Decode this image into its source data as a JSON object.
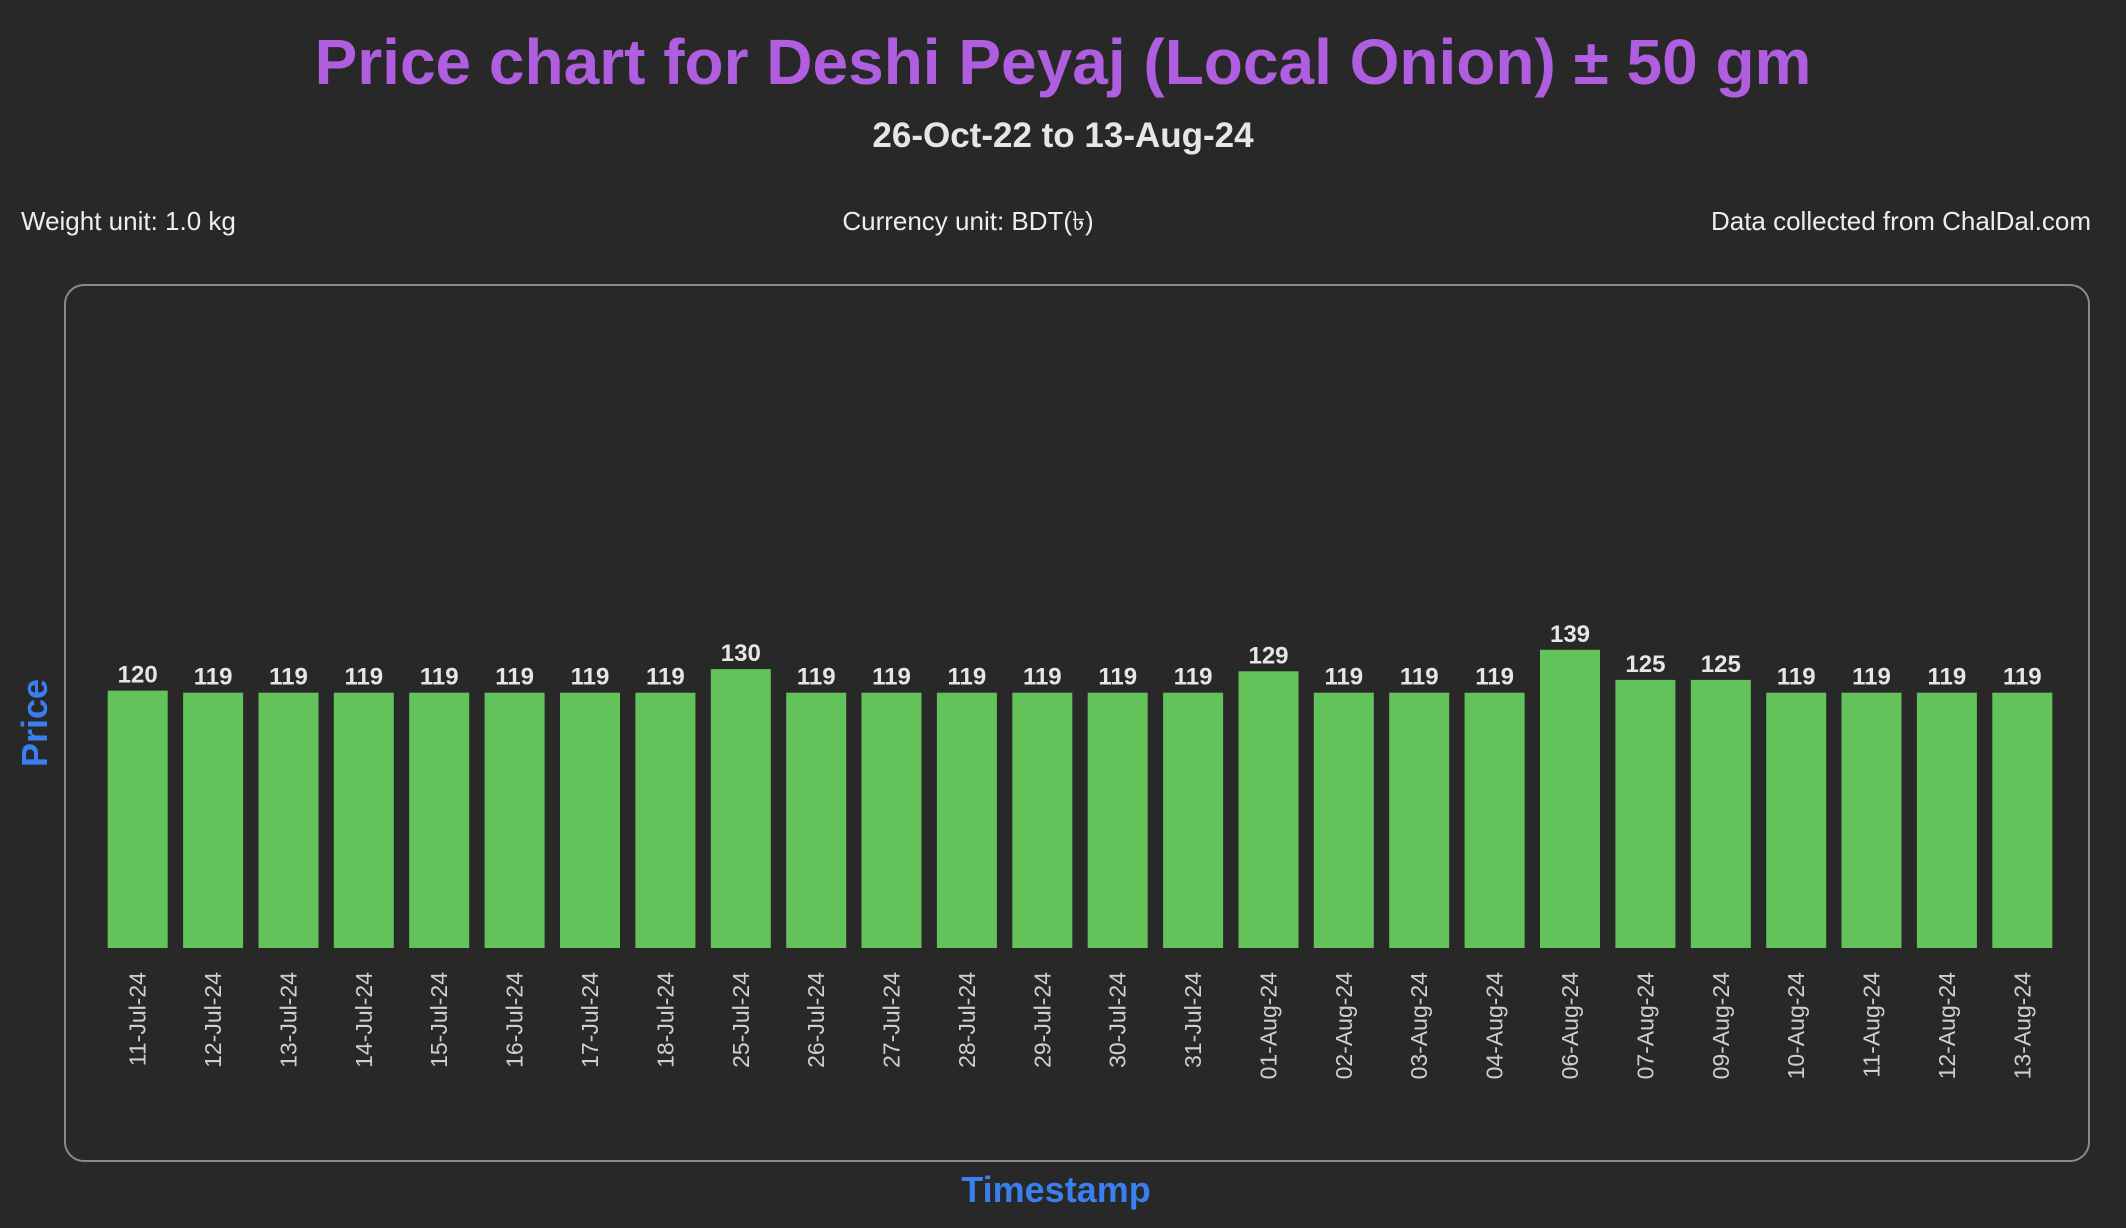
{
  "header": {
    "title": "Price chart for Deshi Peyaj (Local Onion) ± 50 gm",
    "subtitle": "26-Oct-22 to 13-Aug-24"
  },
  "info": {
    "weight_unit": "Weight unit: 1.0 kg",
    "currency_unit": "Currency unit: BDT(৳)",
    "source": "Data collected from ChalDal.com"
  },
  "colors": {
    "background": "#282828",
    "title": "#b05ee0",
    "axis_label": "#3a7ff0",
    "bar": "#63c35a",
    "text": "#e6e6e6",
    "tick_text": "#cfcfcf",
    "frame": "#8a8a8a"
  },
  "chart_data": {
    "type": "bar",
    "xlabel": "Timestamp",
    "ylabel": "Price",
    "ylim": [
      0,
      250
    ],
    "grid": false,
    "categories": [
      "11-Jul-24",
      "12-Jul-24",
      "13-Jul-24",
      "14-Jul-24",
      "15-Jul-24",
      "16-Jul-24",
      "17-Jul-24",
      "18-Jul-24",
      "25-Jul-24",
      "26-Jul-24",
      "27-Jul-24",
      "28-Jul-24",
      "29-Jul-24",
      "30-Jul-24",
      "31-Jul-24",
      "01-Aug-24",
      "02-Aug-24",
      "03-Aug-24",
      "04-Aug-24",
      "06-Aug-24",
      "07-Aug-24",
      "09-Aug-24",
      "10-Aug-24",
      "11-Aug-24",
      "12-Aug-24",
      "13-Aug-24"
    ],
    "values": [
      120,
      119,
      119,
      119,
      119,
      119,
      119,
      119,
      130,
      119,
      119,
      119,
      119,
      119,
      119,
      129,
      119,
      119,
      119,
      139,
      125,
      125,
      119,
      119,
      119,
      119
    ]
  }
}
